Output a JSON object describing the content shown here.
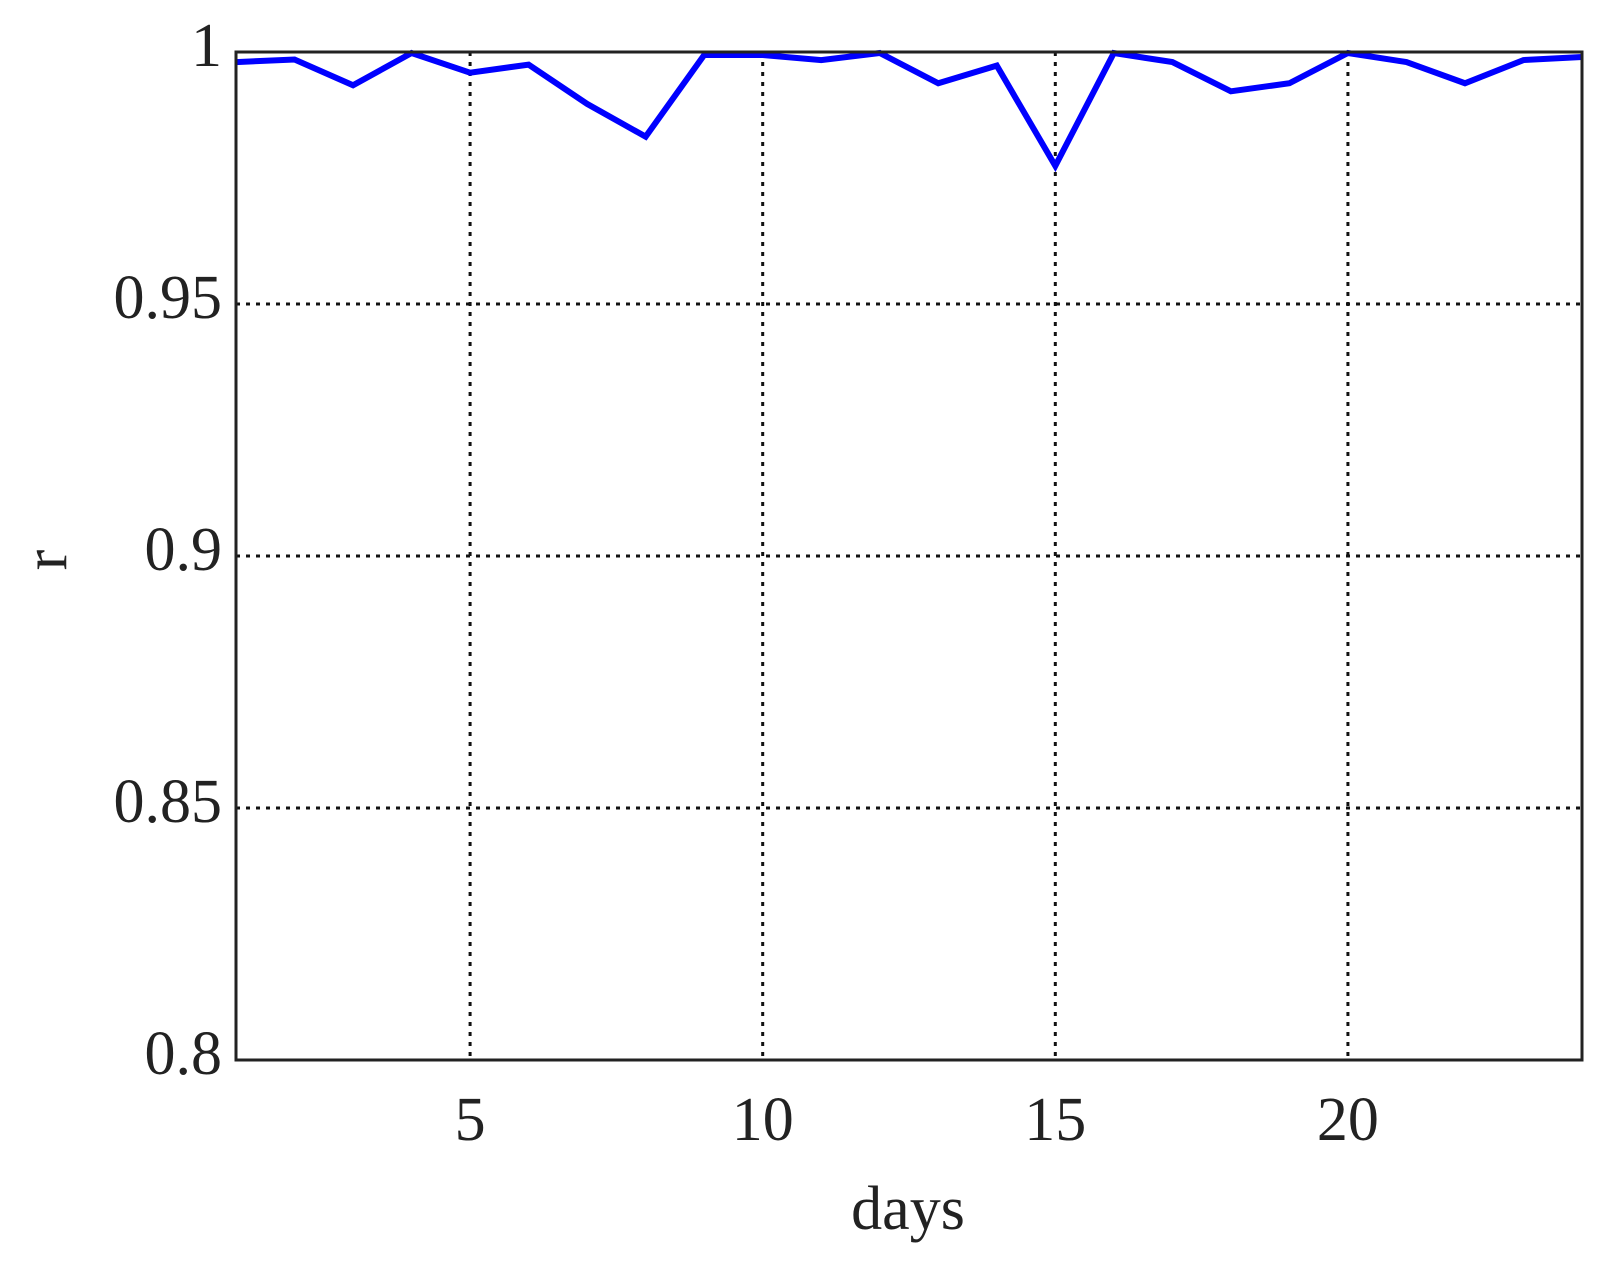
{
  "chart_data": {
    "type": "line",
    "xlabel": "days",
    "ylabel": "r",
    "x": [
      1,
      2,
      3,
      4,
      5,
      6,
      7,
      8,
      9,
      10,
      11,
      12,
      13,
      14,
      15,
      16,
      17,
      18,
      19,
      20,
      21,
      22,
      23,
      24
    ],
    "series": [
      {
        "color": "#0000ff",
        "values": [
          0.998,
          0.9985,
          0.9934,
          0.9998,
          0.9959,
          0.9975,
          0.9897,
          0.9832,
          0.9994,
          0.9994,
          0.9984,
          0.9998,
          0.9938,
          0.9973,
          0.9774,
          0.9998,
          0.998,
          0.9922,
          0.9938,
          0.9998,
          0.998,
          0.9938,
          0.9984,
          0.999
        ]
      }
    ],
    "xlim": [
      1,
      24
    ],
    "xticks": [
      5,
      10,
      15,
      20
    ],
    "ylim": [
      0.8,
      1
    ],
    "yticks": [
      0.8,
      0.85,
      0.9,
      0.95,
      1
    ],
    "grid": true
  }
}
